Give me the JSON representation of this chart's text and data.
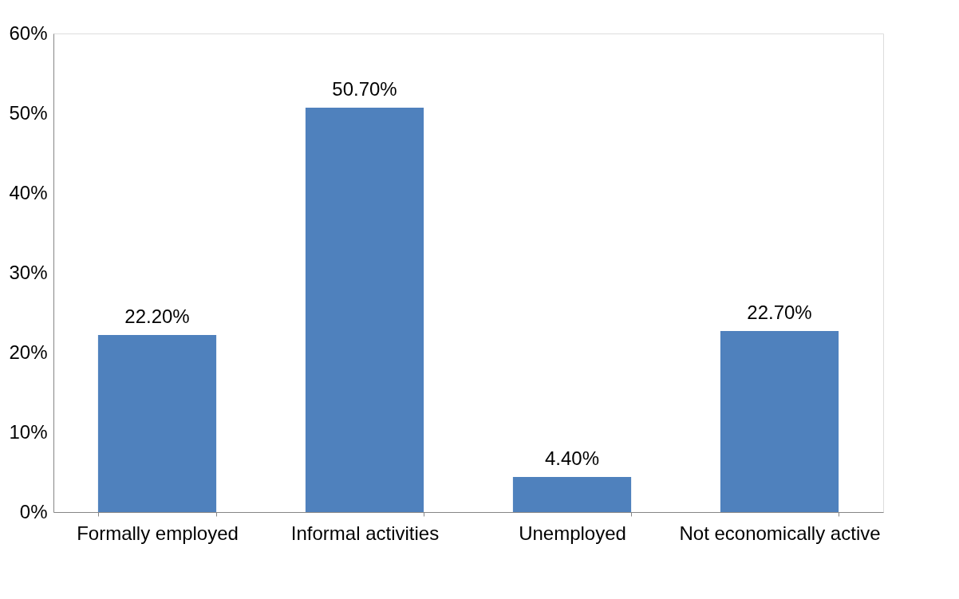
{
  "chart_data": {
    "type": "bar",
    "categories": [
      "Formally employed",
      "Informal activities",
      "Unemployed",
      "Not economically active"
    ],
    "values": [
      22.2,
      50.7,
      4.4,
      22.7
    ],
    "value_labels": [
      "22.20%",
      "50.70%",
      "4.40%",
      "22.70%"
    ],
    "color": "#4f81bd",
    "ylim": [
      0,
      60
    ],
    "yticks": [
      {
        "value": 0,
        "label": "0%"
      },
      {
        "value": 10,
        "label": "10%"
      },
      {
        "value": 20,
        "label": "20%"
      },
      {
        "value": 30,
        "label": "30%"
      },
      {
        "value": 40,
        "label": "40%"
      },
      {
        "value": 50,
        "label": "50%"
      },
      {
        "value": 60,
        "label": "60%"
      }
    ],
    "grid": false
  }
}
